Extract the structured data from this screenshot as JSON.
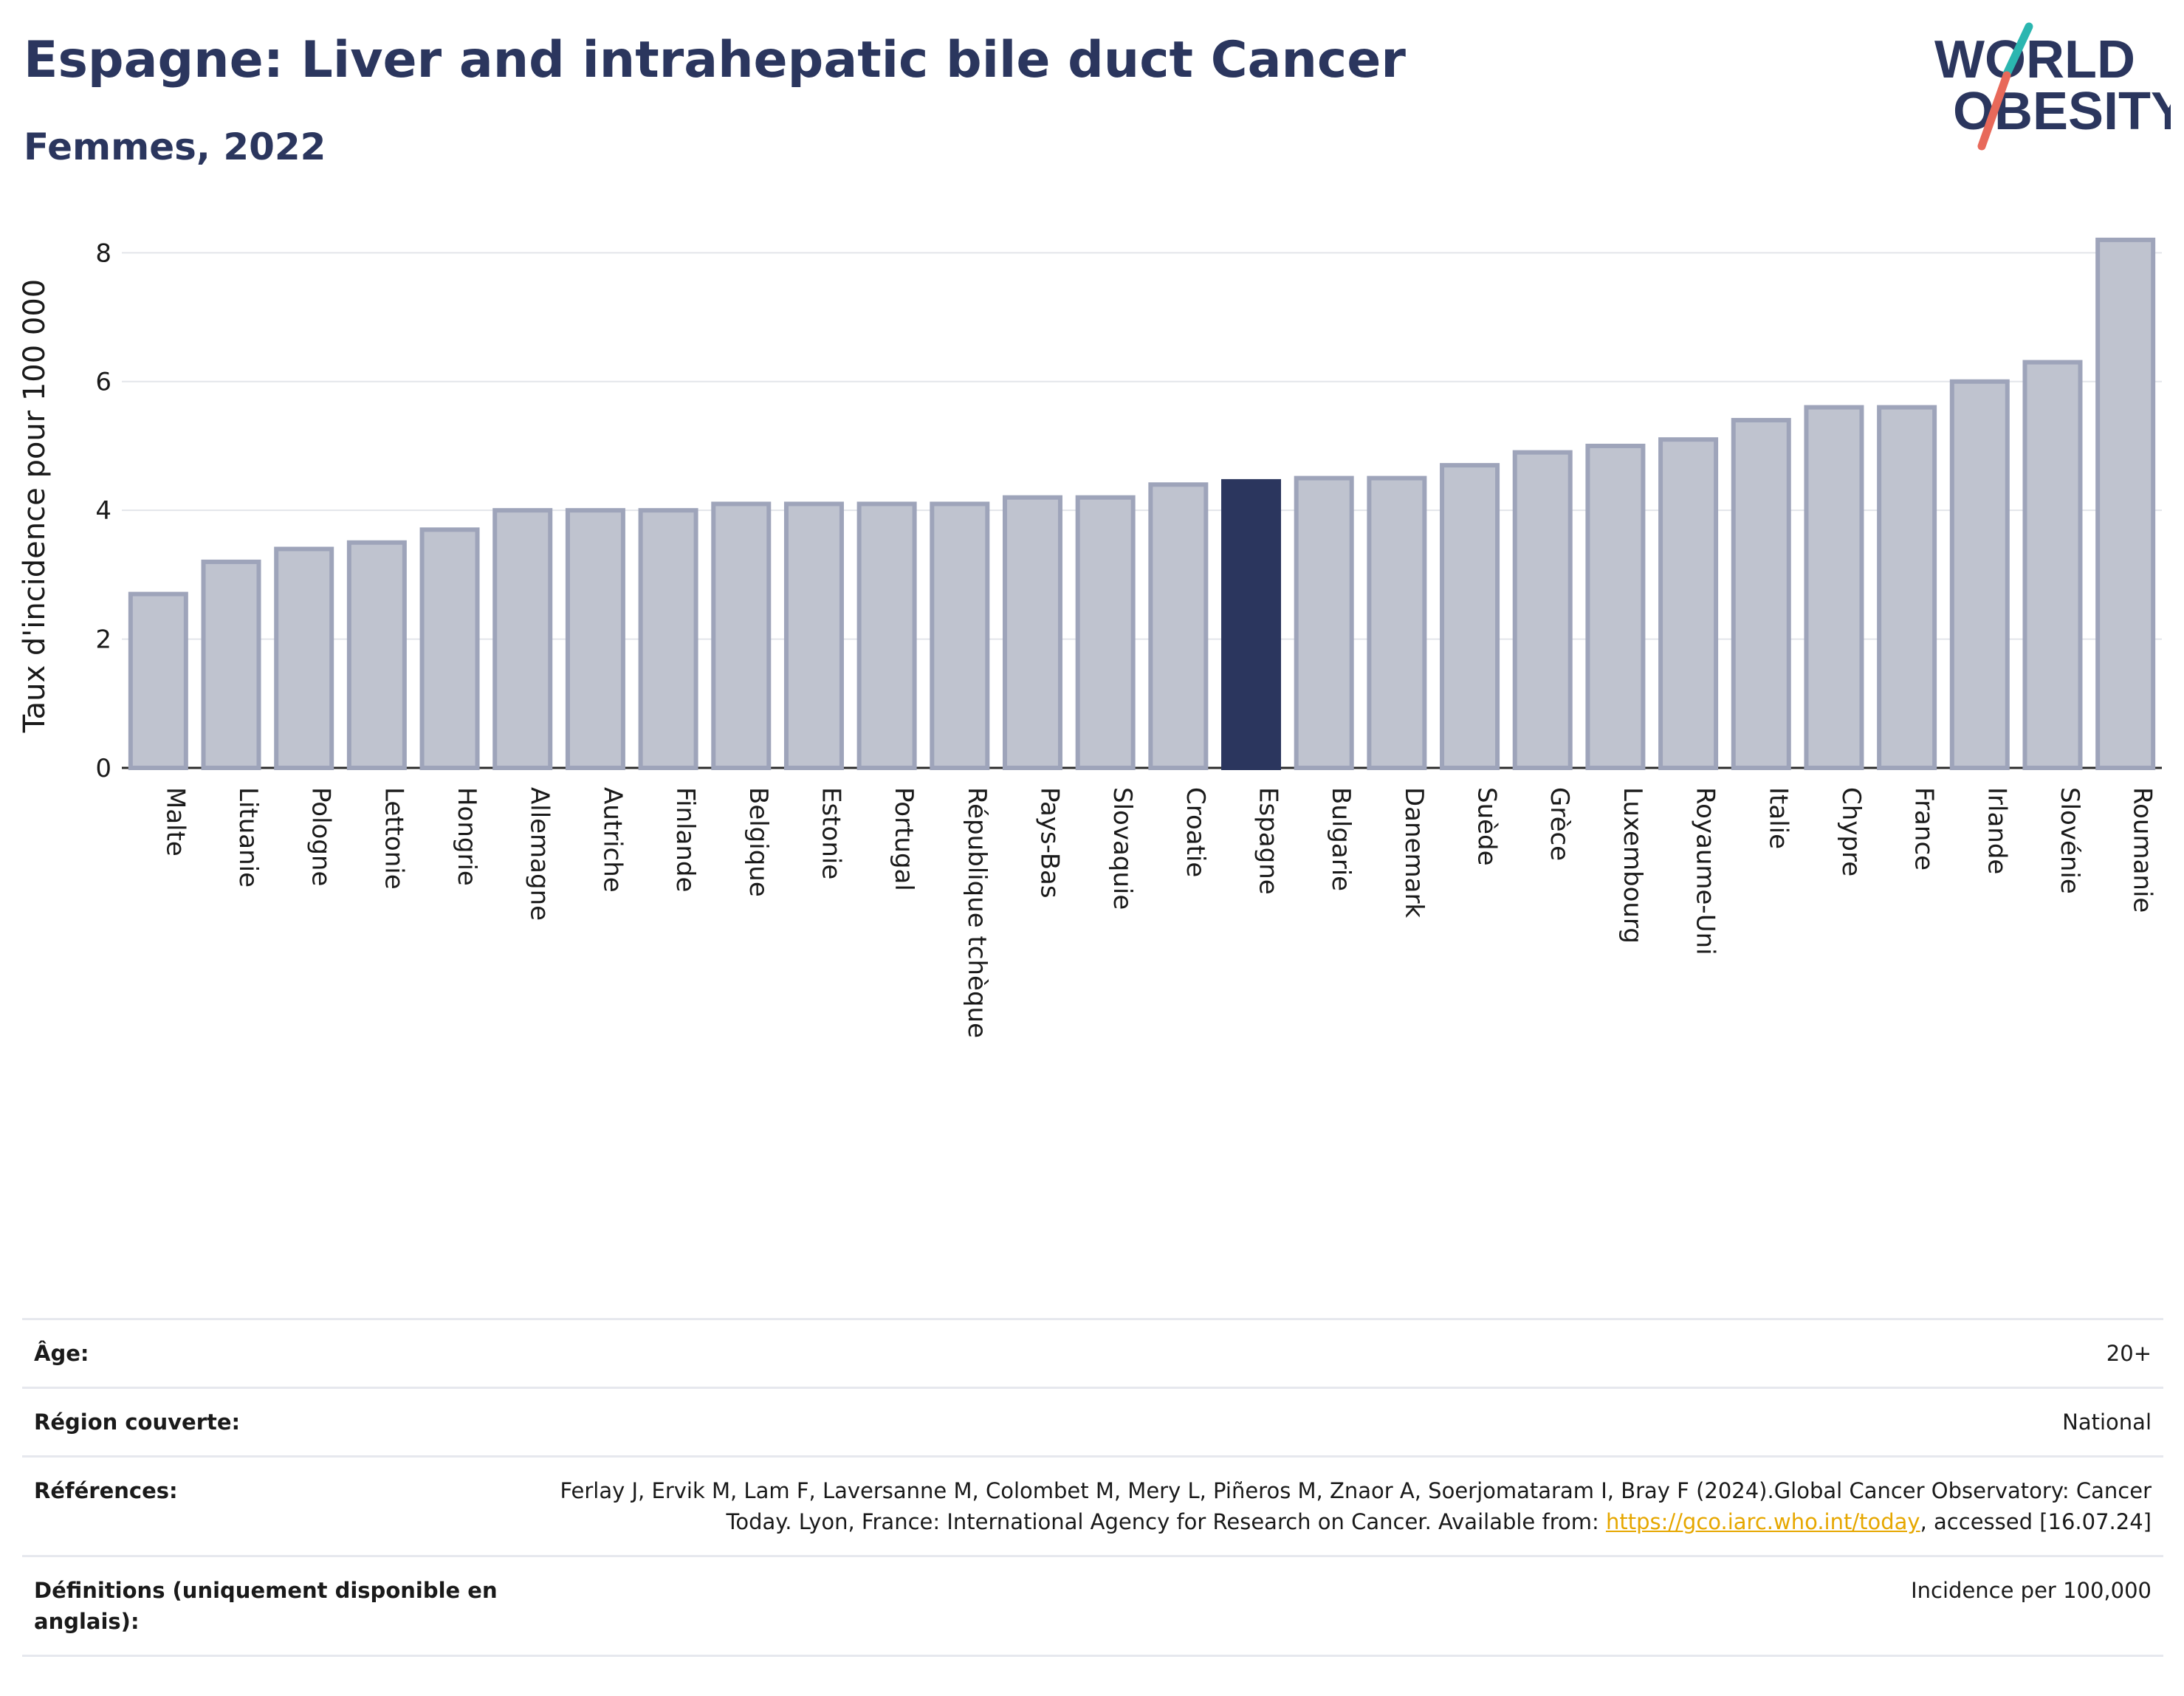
{
  "title": "Espagne: Liver and intrahepatic bile duct Cancer",
  "subtitle": "Femmes, 2022",
  "logo": {
    "line1": "WORLD",
    "line2": "OBESITY"
  },
  "colors": {
    "bar": "#bfc3cf",
    "bar_stroke": "#9ea4ba",
    "highlight": "#2b365e",
    "title": "#2b365e",
    "link": "#e6a700"
  },
  "chart_data": {
    "type": "bar",
    "ylabel": "Taux d'incidence pour 100 000",
    "ylim": [
      0,
      8.6
    ],
    "yticks": [
      0,
      2,
      4,
      6,
      8
    ],
    "grid": true,
    "highlight": "Espagne",
    "categories": [
      "Malte",
      "Lituanie",
      "Pologne",
      "Lettonie",
      "Hongrie",
      "Allemagne",
      "Autriche",
      "Finlande",
      "Belgique",
      "Estonie",
      "Portugal",
      "République tchèque",
      "Pays-Bas",
      "Slovaquie",
      "Croatie",
      "Espagne",
      "Bulgarie",
      "Danemark",
      "Suède",
      "Grèce",
      "Luxembourg",
      "Royaume-Uni",
      "Italie",
      "Chypre",
      "France",
      "Irlande",
      "Slovénie",
      "Roumanie"
    ],
    "values": [
      2.7,
      3.2,
      3.4,
      3.5,
      3.7,
      4.0,
      4.0,
      4.0,
      4.1,
      4.1,
      4.1,
      4.1,
      4.2,
      4.2,
      4.4,
      4.45,
      4.5,
      4.5,
      4.7,
      4.9,
      5.0,
      5.1,
      5.4,
      5.6,
      5.6,
      6.0,
      6.3,
      8.2
    ]
  },
  "meta": {
    "age_label": "Âge:",
    "age_value": "20+",
    "region_label": "Région couverte:",
    "region_value": "National",
    "refs_label": "Références:",
    "refs_text_1": "Ferlay J, Ervik M, Lam F, Laversanne M, Colombet M, Mery L, Piñeros M, Znaor A, Soerjomataram I, Bray F (2024).Global Cancer Observatory: Cancer Today. Lyon, France: International Agency for Research on Cancer. Available from: ",
    "refs_link": "https://gco.iarc.who.int/today",
    "refs_text_2": ", accessed [16.07.24]",
    "defs_label": "Définitions (uniquement disponible en anglais):",
    "defs_value": "Incidence per 100,000"
  }
}
